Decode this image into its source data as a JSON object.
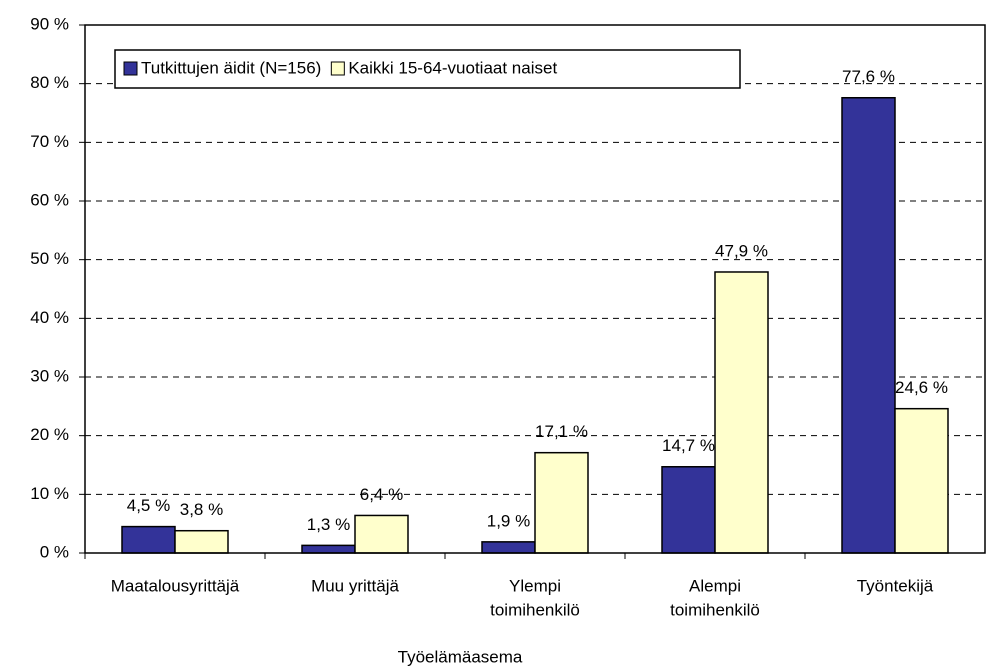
{
  "chart_data": {
    "type": "bar",
    "x_label": "Työelämäasema",
    "categories": [
      [
        "Maatalousyrittäjä"
      ],
      [
        "Muu yrittäjä"
      ],
      [
        "Ylempi",
        "toimihenkilö"
      ],
      [
        "Alempi",
        "toimihenkilö"
      ],
      [
        "Työntekijä"
      ]
    ],
    "series": [
      {
        "name": "Tutkittujen äidit (N=156)",
        "color": "#333399",
        "values": [
          4.5,
          1.3,
          1.9,
          14.7,
          77.6
        ],
        "value_labels": [
          "4,5 %",
          "1,3 %",
          "1,9 %",
          "14,7 %",
          "77,6 %"
        ]
      },
      {
        "name": "Kaikki 15-64-vuotiaat naiset",
        "color": "#FFFFCC",
        "values": [
          3.8,
          6.4,
          17.1,
          47.9,
          24.6
        ],
        "value_labels": [
          "3,8 %",
          "6,4 %",
          "17,1 %",
          "47,9 %",
          "24,6 %"
        ]
      }
    ],
    "ylim": [
      0,
      90
    ],
    "yticks": [
      {
        "value": 0,
        "label": "0 %"
      },
      {
        "value": 10,
        "label": "10 %"
      },
      {
        "value": 20,
        "label": "20 %"
      },
      {
        "value": 30,
        "label": "30 %"
      },
      {
        "value": 40,
        "label": "40 %"
      },
      {
        "value": 50,
        "label": "50 %"
      },
      {
        "value": 60,
        "label": "60 %"
      },
      {
        "value": 70,
        "label": "70 %"
      },
      {
        "value": 80,
        "label": "80 %"
      },
      {
        "value": 90,
        "label": "90 %"
      }
    ],
    "grid": true,
    "legend": "top-left"
  }
}
